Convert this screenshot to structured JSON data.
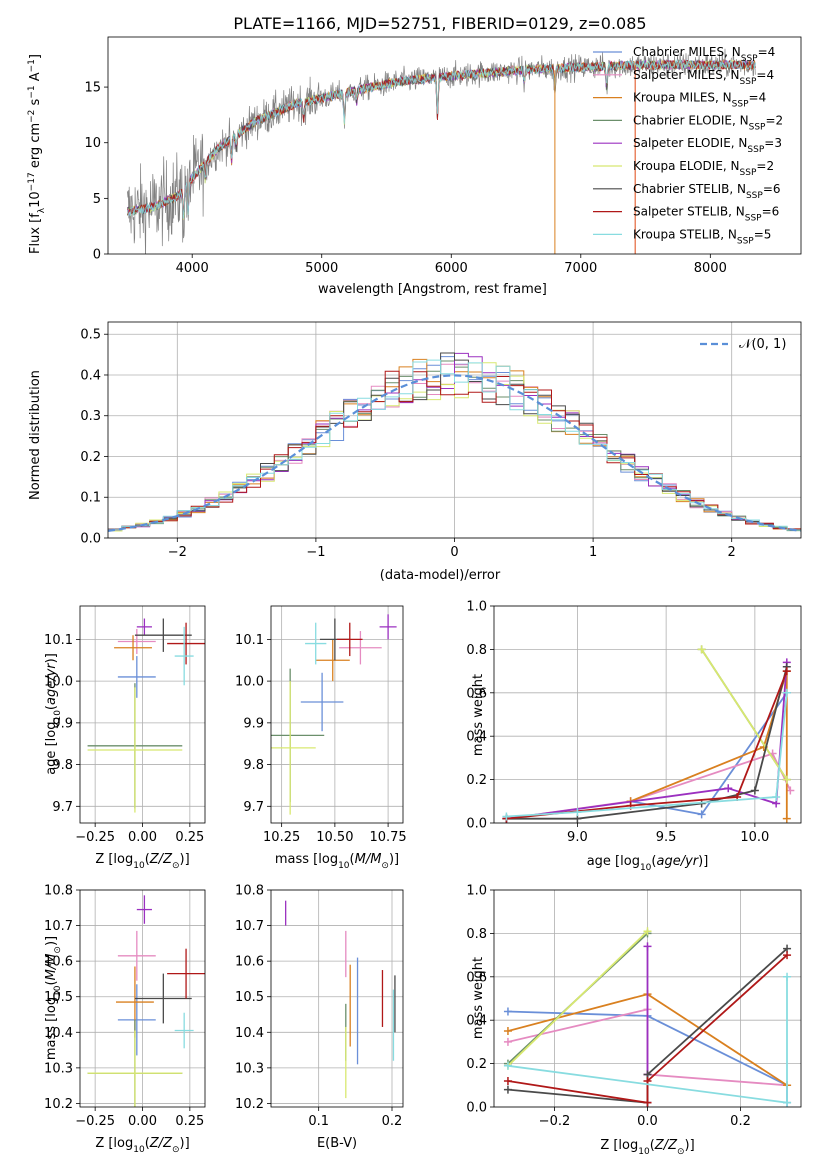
{
  "figure_title": "PLATE=1166, MJD=52751, FIBERID=0129, z=0.085",
  "colors": {
    "Chabrier MILES": "#6a8fd8",
    "Salpeter MILES": "#e58bc1",
    "Kroupa MILES": "#d98020",
    "Chabrier ELODIE": "#6b8f6b",
    "Salpeter ELODIE": "#9b30c0",
    "Kroupa ELODIE": "#d8e870",
    "Chabrier STELIB": "#4a4a4a",
    "Salpeter STELIB": "#b01818",
    "Kroupa STELIB": "#88dce0",
    "data": "#808080",
    "normal": "#5a8fd8"
  },
  "chart_data": [
    {
      "type": "line",
      "id": "spectrum",
      "xlabel": "wavelength [Angstrom, rest frame]",
      "ylabel": "Flux [f_λ 10^-17 erg cm^-2 s^-1 A^-1]",
      "xlim": [
        3350,
        8700
      ],
      "ylim": [
        0,
        19.5
      ],
      "xticks": [
        4000,
        5000,
        6000,
        7000,
        8000
      ],
      "yticks": [
        0,
        5,
        10,
        15
      ],
      "legend_position": "upper right",
      "legend": [
        {
          "label": "Chabrier MILES, N",
          "sub": "SSP",
          "tail": "=4"
        },
        {
          "label": "Salpeter MILES, N",
          "sub": "SSP",
          "tail": "=4"
        },
        {
          "label": "Kroupa MILES, N",
          "sub": "SSP",
          "tail": "=4"
        },
        {
          "label": "Chabrier ELODIE, N",
          "sub": "SSP",
          "tail": "=2"
        },
        {
          "label": "Salpeter ELODIE, N",
          "sub": "SSP",
          "tail": "=3"
        },
        {
          "label": "Kroupa ELODIE, N",
          "sub": "SSP",
          "tail": "=2"
        },
        {
          "label": "Chabrier STELIB, N",
          "sub": "SSP",
          "tail": "=6"
        },
        {
          "label": "Salpeter STELIB, N",
          "sub": "SSP",
          "tail": "=6"
        },
        {
          "label": "Kroupa STELIB, N",
          "sub": "SSP",
          "tail": "=5"
        }
      ],
      "continuum": [
        [
          3500,
          3.8
        ],
        [
          3700,
          4.2
        ],
        [
          3900,
          5.3
        ],
        [
          4000,
          6.8
        ],
        [
          4200,
          9.5
        ],
        [
          4500,
          12.0
        ],
        [
          4800,
          13.5
        ],
        [
          5000,
          14.0
        ],
        [
          5300,
          14.8
        ],
        [
          5600,
          15.5
        ],
        [
          6000,
          16.0
        ],
        [
          6500,
          16.5
        ],
        [
          7000,
          16.8
        ],
        [
          7500,
          17.0
        ],
        [
          8000,
          17.0
        ],
        [
          8350,
          17.0
        ]
      ],
      "absorption": [
        [
          3934,
          2.5
        ],
        [
          3969,
          2.5
        ],
        [
          4102,
          1.5
        ],
        [
          4304,
          2.0
        ],
        [
          4340,
          1.2
        ],
        [
          4861,
          1.5
        ],
        [
          5175,
          2.5
        ],
        [
          5270,
          1.0
        ],
        [
          5893,
          3.5
        ],
        [
          6563,
          1.0
        ],
        [
          6800,
          2.0
        ],
        [
          7200,
          2.0
        ]
      ]
    },
    {
      "type": "step",
      "id": "residuals",
      "xlabel": "(data-model)/error",
      "ylabel": "Normed distribution",
      "xlim": [
        -2.5,
        2.5
      ],
      "ylim": [
        0,
        0.53
      ],
      "xticks": [
        -2,
        -1,
        0,
        1,
        2
      ],
      "yticks": [
        0.0,
        0.1,
        0.2,
        0.3,
        0.4,
        0.5
      ],
      "grid": true,
      "legend": "𝒩(0, 1)",
      "legend_position": "upper right",
      "bin_width": 0.1,
      "normal_curve": {
        "mean": 0,
        "sigma": 1
      }
    },
    {
      "type": "errorbar",
      "id": "age-vs-Z",
      "xlabel": "Z [log10(Z/Z⊙)]",
      "ylabel": "age [log10(age/yr)]",
      "xlim": [
        -0.33,
        0.33
      ],
      "ylim": [
        9.66,
        10.18
      ],
      "xticks": [
        -0.25,
        0.0,
        0.25
      ],
      "yticks": [
        9.7,
        9.8,
        9.9,
        10.0,
        10.1
      ],
      "grid": true,
      "points": [
        {
          "series": "Chabrier MILES",
          "x": -0.03,
          "xerr": 0.1,
          "y": 10.01,
          "yerr": 0.05
        },
        {
          "series": "Salpeter MILES",
          "x": -0.03,
          "xerr": 0.1,
          "y": 10.095,
          "yerr": 0.03
        },
        {
          "series": "Kroupa MILES",
          "x": -0.05,
          "xerr": 0.1,
          "y": 10.08,
          "yerr": 0.03
        },
        {
          "series": "Chabrier ELODIE",
          "x": -0.04,
          "xerr": 0.25,
          "y": 9.845,
          "yerr": 0.15
        },
        {
          "series": "Salpeter ELODIE",
          "x": 0.01,
          "xerr": 0.04,
          "y": 10.13,
          "yerr": 0.02
        },
        {
          "series": "Kroupa ELODIE",
          "x": -0.04,
          "xerr": 0.25,
          "y": 9.835,
          "yerr": 0.15
        },
        {
          "series": "Chabrier STELIB",
          "x": 0.11,
          "xerr": 0.15,
          "y": 10.11,
          "yerr": 0.04
        },
        {
          "series": "Salpeter STELIB",
          "x": 0.23,
          "xerr": 0.1,
          "y": 10.09,
          "yerr": 0.05
        },
        {
          "series": "Kroupa STELIB",
          "x": 0.22,
          "xerr": 0.05,
          "y": 10.06,
          "yerr": 0.07
        }
      ]
    },
    {
      "type": "errorbar",
      "id": "age-vs-mass",
      "xlabel": "mass [log10(M/M⊙)]",
      "ylabel": "",
      "xlim": [
        10.2,
        10.82
      ],
      "ylim": [
        9.66,
        10.18
      ],
      "xticks": [
        10.25,
        10.5,
        10.75
      ],
      "yticks": [
        9.7,
        9.8,
        9.9,
        10.0,
        10.1
      ],
      "grid": true,
      "points": [
        {
          "series": "Chabrier MILES",
          "x": 10.44,
          "xerr": 0.1,
          "y": 9.95,
          "yerr": 0.07
        },
        {
          "series": "Salpeter MILES",
          "x": 10.62,
          "xerr": 0.1,
          "y": 10.08,
          "yerr": 0.04
        },
        {
          "series": "Kroupa MILES",
          "x": 10.49,
          "xerr": 0.08,
          "y": 10.05,
          "yerr": 0.05
        },
        {
          "series": "Chabrier ELODIE",
          "x": 10.29,
          "xerr": 0.16,
          "y": 9.87,
          "yerr": 0.16
        },
        {
          "series": "Salpeter ELODIE",
          "x": 10.75,
          "xerr": 0.04,
          "y": 10.13,
          "yerr": 0.03
        },
        {
          "series": "Kroupa ELODIE",
          "x": 10.29,
          "xerr": 0.12,
          "y": 9.84,
          "yerr": 0.16
        },
        {
          "series": "Chabrier STELIB",
          "x": 10.5,
          "xerr": 0.07,
          "y": 10.1,
          "yerr": 0.05
        },
        {
          "series": "Salpeter STELIB",
          "x": 10.57,
          "xerr": 0.06,
          "y": 10.1,
          "yerr": 0.04
        },
        {
          "series": "Kroupa STELIB",
          "x": 10.41,
          "xerr": 0.05,
          "y": 10.09,
          "yerr": 0.05
        }
      ]
    },
    {
      "type": "line",
      "id": "weight-vs-age",
      "xlabel": "age [log10(age/yr)]",
      "ylabel": "mass weight",
      "xlim": [
        8.53,
        10.26
      ],
      "ylim": [
        0,
        1.0
      ],
      "xticks": [
        9.0,
        9.5,
        10.0
      ],
      "yticks": [
        0.0,
        0.2,
        0.4,
        0.6,
        0.8,
        1.0
      ],
      "grid": true,
      "series": [
        {
          "name": "Chabrier MILES",
          "points": [
            [
              9.3,
              0.1
            ],
            [
              9.7,
              0.04
            ],
            [
              10.18,
              0.6
            ]
          ]
        },
        {
          "name": "Salpeter MILES",
          "points": [
            [
              8.6,
              0.02
            ],
            [
              9.3,
              0.1
            ],
            [
              10.1,
              0.32
            ],
            [
              10.2,
              0.15
            ]
          ]
        },
        {
          "name": "Kroupa MILES",
          "points": [
            [
              9.3,
              0.1
            ],
            [
              10.05,
              0.35
            ],
            [
              10.18,
              0.7
            ],
            [
              10.18,
              0.02
            ]
          ]
        },
        {
          "name": "Chabrier ELODIE",
          "points": [
            [
              9.7,
              0.8
            ],
            [
              10.18,
              0.2
            ]
          ]
        },
        {
          "name": "Salpeter ELODIE",
          "points": [
            [
              8.6,
              0.02
            ],
            [
              9.85,
              0.16
            ],
            [
              10.12,
              0.09
            ],
            [
              10.18,
              0.74
            ]
          ]
        },
        {
          "name": "Kroupa ELODIE",
          "points": [
            [
              9.7,
              0.8
            ],
            [
              10.18,
              0.2
            ]
          ]
        },
        {
          "name": "Chabrier STELIB",
          "points": [
            [
              8.6,
              0.02
            ],
            [
              9.0,
              0.02
            ],
            [
              9.7,
              0.09
            ],
            [
              10.0,
              0.15
            ],
            [
              10.18,
              0.72
            ]
          ]
        },
        {
          "name": "Salpeter STELIB",
          "points": [
            [
              8.6,
              0.02
            ],
            [
              9.3,
              0.08
            ],
            [
              9.9,
              0.12
            ],
            [
              10.18,
              0.7
            ]
          ]
        },
        {
          "name": "Kroupa STELIB",
          "points": [
            [
              8.6,
              0.03
            ],
            [
              9.0,
              0.05
            ],
            [
              10.12,
              0.12
            ],
            [
              10.18,
              0.6
            ]
          ]
        }
      ]
    },
    {
      "type": "errorbar",
      "id": "mass-vs-Z",
      "xlabel": "Z [log10(Z/Z⊙)]",
      "ylabel": "mass [log10(M/M⊙)]",
      "xlim": [
        -0.33,
        0.33
      ],
      "ylim": [
        10.19,
        10.8
      ],
      "xticks": [
        -0.25,
        0.0,
        0.25
      ],
      "yticks": [
        10.2,
        10.3,
        10.4,
        10.5,
        10.6,
        10.7,
        10.8
      ],
      "grid": true,
      "points": [
        {
          "series": "Chabrier MILES",
          "x": -0.03,
          "xerr": 0.1,
          "y": 10.435,
          "yerr": 0.1
        },
        {
          "series": "Salpeter MILES",
          "x": -0.03,
          "xerr": 0.1,
          "y": 10.615,
          "yerr": 0.07
        },
        {
          "series": "Kroupa MILES",
          "x": -0.04,
          "xerr": 0.1,
          "y": 10.485,
          "yerr": 0.1
        },
        {
          "series": "Chabrier ELODIE",
          "x": -0.04,
          "xerr": 0.25,
          "y": 10.285,
          "yerr": 0.15
        },
        {
          "series": "Salpeter ELODIE",
          "x": 0.01,
          "xerr": 0.04,
          "y": 10.745,
          "yerr": 0.04
        },
        {
          "series": "Kroupa ELODIE",
          "x": -0.04,
          "xerr": 0.25,
          "y": 10.285,
          "yerr": 0.12
        },
        {
          "series": "Chabrier STELIB",
          "x": 0.11,
          "xerr": 0.15,
          "y": 10.495,
          "yerr": 0.07
        },
        {
          "series": "Salpeter STELIB",
          "x": 0.23,
          "xerr": 0.1,
          "y": 10.565,
          "yerr": 0.07
        },
        {
          "series": "Kroupa STELIB",
          "x": 0.22,
          "xerr": 0.05,
          "y": 10.405,
          "yerr": 0.05
        }
      ]
    },
    {
      "type": "errorbar",
      "id": "mass-vs-ebv",
      "xlabel": "E(B-V)",
      "ylabel": "",
      "xlim": [
        0.035,
        0.215
      ],
      "ylim": [
        10.19,
        10.8
      ],
      "xticks": [
        0.1,
        0.2
      ],
      "yticks": [
        10.2,
        10.3,
        10.4,
        10.5,
        10.6,
        10.7,
        10.8
      ],
      "grid": true,
      "points": [
        {
          "series": "Chabrier MILES",
          "x": 0.153,
          "xerr": 0,
          "y": 10.46,
          "yerr": 0.15
        },
        {
          "series": "Salpeter MILES",
          "x": 0.137,
          "xerr": 0,
          "y": 10.62,
          "yerr": 0.065
        },
        {
          "series": "Kroupa MILES",
          "x": 0.143,
          "xerr": 0,
          "y": 10.475,
          "yerr": 0.115
        },
        {
          "series": "Chabrier ELODIE",
          "x": 0.137,
          "xerr": 0,
          "y": 10.4,
          "yerr": 0.08
        },
        {
          "series": "Salpeter ELODIE",
          "x": 0.055,
          "xerr": 0,
          "y": 10.735,
          "yerr": 0.035
        },
        {
          "series": "Kroupa ELODIE",
          "x": 0.137,
          "xerr": 0,
          "y": 10.315,
          "yerr": 0.1
        },
        {
          "series": "Chabrier STELIB",
          "x": 0.204,
          "xerr": 0,
          "y": 10.48,
          "yerr": 0.08
        },
        {
          "series": "Salpeter STELIB",
          "x": 0.187,
          "xerr": 0,
          "y": 10.495,
          "yerr": 0.08
        },
        {
          "series": "Kroupa STELIB",
          "x": 0.202,
          "xerr": 0,
          "y": 10.42,
          "yerr": 0.1
        }
      ]
    },
    {
      "type": "line",
      "id": "weight-vs-Z",
      "xlabel": "Z [log10(Z/Z⊙)]",
      "ylabel": "mass weight",
      "xlim": [
        -0.33,
        0.33
      ],
      "ylim": [
        0,
        1.0
      ],
      "xticks": [
        -0.2,
        0.0,
        0.2
      ],
      "yticks": [
        0.0,
        0.2,
        0.4,
        0.6,
        0.8,
        1.0
      ],
      "grid": true,
      "series": [
        {
          "name": "Chabrier MILES",
          "points": [
            [
              -0.3,
              0.44
            ],
            [
              0.0,
              0.42
            ],
            [
              0.3,
              0.1
            ],
            [
              0.3,
              0.02
            ]
          ]
        },
        {
          "name": "Salpeter MILES",
          "points": [
            [
              -0.3,
              0.3
            ],
            [
              0.0,
              0.45
            ],
            [
              0.0,
              0.15
            ],
            [
              0.3,
              0.1
            ]
          ]
        },
        {
          "name": "Kroupa MILES",
          "points": [
            [
              -0.3,
              0.35
            ],
            [
              0.0,
              0.52
            ],
            [
              0.3,
              0.1
            ]
          ]
        },
        {
          "name": "Chabrier ELODIE",
          "points": [
            [
              -0.3,
              0.2
            ],
            [
              0.0,
              0.8
            ]
          ]
        },
        {
          "name": "Salpeter ELODIE",
          "points": [
            [
              0.0,
              0.74
            ],
            [
              0.0,
              0.02
            ],
            [
              0.0,
              0.15
            ]
          ]
        },
        {
          "name": "Kroupa ELODIE",
          "points": [
            [
              -0.3,
              0.19
            ],
            [
              0.0,
              0.81
            ]
          ]
        },
        {
          "name": "Chabrier STELIB",
          "points": [
            [
              -0.3,
              0.08
            ],
            [
              0.0,
              0.02
            ],
            [
              0.0,
              0.15
            ],
            [
              0.3,
              0.73
            ]
          ]
        },
        {
          "name": "Salpeter STELIB",
          "points": [
            [
              -0.3,
              0.12
            ],
            [
              0.0,
              0.02
            ],
            [
              0.0,
              0.12
            ],
            [
              0.3,
              0.7
            ]
          ]
        },
        {
          "name": "Kroupa STELIB",
          "points": [
            [
              -0.3,
              0.19
            ],
            [
              0.3,
              0.02
            ],
            [
              0.3,
              0.6
            ]
          ]
        }
      ]
    }
  ]
}
